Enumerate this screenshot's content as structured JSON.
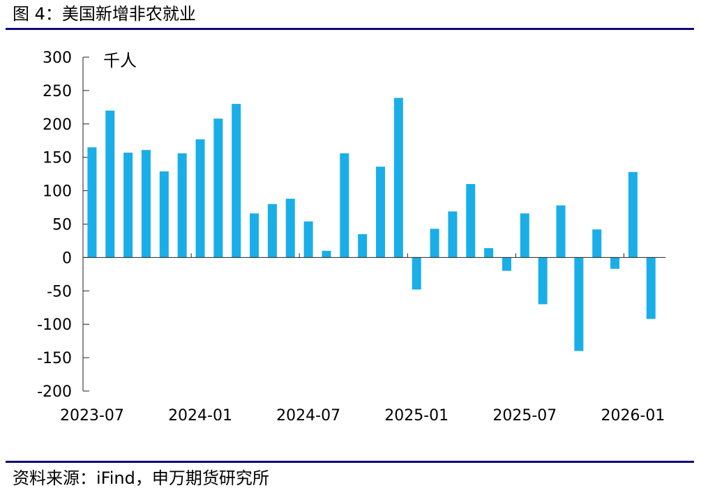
{
  "figure": {
    "title": "图 4：美国新增非农就业",
    "source": "资料来源：iFind，申万期货研究所"
  },
  "chart_data": {
    "type": "bar",
    "unit_label": "千人",
    "color": "#1aaee8",
    "ylim": [
      -200,
      300
    ],
    "y_ticks": [
      300,
      250,
      200,
      150,
      100,
      50,
      0,
      -50,
      -100,
      -150,
      -200
    ],
    "x_tick_labels": [
      "2023-07",
      "2024-01",
      "2024-07",
      "2025-01",
      "2025-07",
      "2026-01"
    ],
    "categories": [
      "2023-07",
      "2023-08",
      "2023-09",
      "2023-10",
      "2023-11",
      "2023-12",
      "2024-01",
      "2024-02",
      "2024-03",
      "2024-04",
      "2024-05",
      "2024-06",
      "2024-07",
      "2024-08",
      "2024-09",
      "2024-10",
      "2024-11",
      "2024-12",
      "2025-01",
      "2025-02",
      "2025-03",
      "2025-04",
      "2025-05",
      "2025-06",
      "2025-07",
      "2025-08",
      "2025-09",
      "2025-10",
      "2025-11",
      "2025-12",
      "2026-01",
      "2026-02"
    ],
    "values": [
      165,
      220,
      157,
      161,
      129,
      156,
      177,
      208,
      230,
      66,
      80,
      88,
      54,
      10,
      156,
      35,
      136,
      239,
      -48,
      43,
      69,
      110,
      14,
      -20,
      66,
      -70,
      78,
      -140,
      42,
      -17,
      128,
      -92
    ],
    "grid": false
  }
}
